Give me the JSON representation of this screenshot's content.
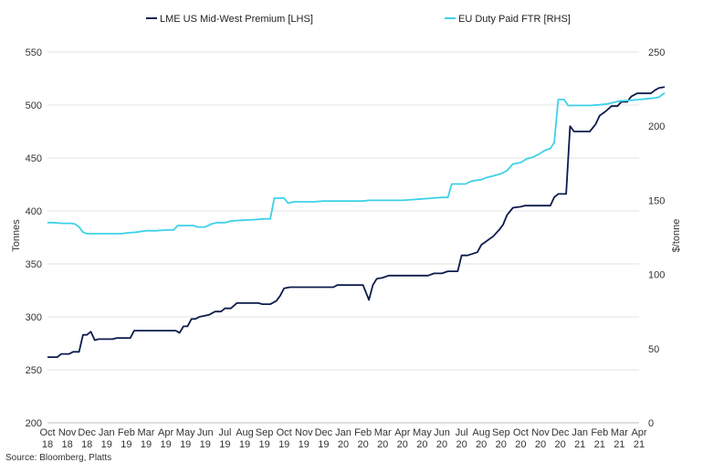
{
  "chart_data": {
    "type": "line",
    "title": "",
    "source": "Source: Bloomberg, Platts",
    "legend": [
      {
        "name": "LME US Mid-West Premium [LHS]",
        "color": "#0d1b4c"
      },
      {
        "name": "EU Duty Paid FTR [RHS]",
        "color": "#3ed1ea"
      }
    ],
    "y_left": {
      "label": "Tonnes",
      "min": 200,
      "max": 550,
      "ticks": [
        "200",
        "250",
        "300",
        "350",
        "400",
        "450",
        "500",
        "550"
      ]
    },
    "y_right": {
      "label": "$/tonne",
      "min": 0,
      "max": 250,
      "ticks": [
        "0",
        "50",
        "100",
        "150",
        "200",
        "250"
      ]
    },
    "x_ticks": [
      {
        "m": "Oct",
        "y": "18"
      },
      {
        "m": "Nov",
        "y": "18"
      },
      {
        "m": "Dec",
        "y": "18"
      },
      {
        "m": "Jan",
        "y": "19"
      },
      {
        "m": "Feb",
        "y": "19"
      },
      {
        "m": "Mar",
        "y": "19"
      },
      {
        "m": "Apr",
        "y": "19"
      },
      {
        "m": "May",
        "y": "19"
      },
      {
        "m": "Jun",
        "y": "19"
      },
      {
        "m": "Jul",
        "y": "19"
      },
      {
        "m": "Aug",
        "y": "19"
      },
      {
        "m": "Sep",
        "y": "19"
      },
      {
        "m": "Oct",
        "y": "19"
      },
      {
        "m": "Nov",
        "y": "19"
      },
      {
        "m": "Dec",
        "y": "19"
      },
      {
        "m": "Jan",
        "y": "20"
      },
      {
        "m": "Feb",
        "y": "20"
      },
      {
        "m": "Mar",
        "y": "20"
      },
      {
        "m": "Apr",
        "y": "20"
      },
      {
        "m": "May",
        "y": "20"
      },
      {
        "m": "Jun",
        "y": "20"
      },
      {
        "m": "Jul",
        "y": "20"
      },
      {
        "m": "Aug",
        "y": "20"
      },
      {
        "m": "Sep",
        "y": "20"
      },
      {
        "m": "Oct",
        "y": "20"
      },
      {
        "m": "Nov",
        "y": "20"
      },
      {
        "m": "Dec",
        "y": "20"
      },
      {
        "m": "Jan",
        "y": "21"
      },
      {
        "m": "Feb",
        "y": "21"
      },
      {
        "m": "Mar",
        "y": "21"
      },
      {
        "m": "Apr",
        "y": "21"
      }
    ],
    "series": [
      {
        "name": "LME US Mid-West Premium [LHS]",
        "axis": "left",
        "color": "#0d1b4c",
        "points": [
          [
            0,
            262
          ],
          [
            0.5,
            262
          ],
          [
            0.7,
            265
          ],
          [
            1.1,
            265
          ],
          [
            1.3,
            267
          ],
          [
            1.6,
            267
          ],
          [
            1.8,
            283
          ],
          [
            2.0,
            283
          ],
          [
            2.2,
            286
          ],
          [
            2.4,
            278
          ],
          [
            2.6,
            279
          ],
          [
            3.3,
            279
          ],
          [
            3.5,
            280
          ],
          [
            4.2,
            280
          ],
          [
            4.4,
            287
          ],
          [
            6.5,
            287
          ],
          [
            6.7,
            285
          ],
          [
            6.9,
            291
          ],
          [
            7.1,
            291
          ],
          [
            7.3,
            298
          ],
          [
            7.5,
            298
          ],
          [
            7.7,
            300
          ],
          [
            8.2,
            302
          ],
          [
            8.5,
            305
          ],
          [
            8.8,
            305
          ],
          [
            9.0,
            308
          ],
          [
            9.3,
            308
          ],
          [
            9.6,
            313
          ],
          [
            10.0,
            313
          ],
          [
            10.7,
            313
          ],
          [
            10.9,
            312
          ],
          [
            11.3,
            312
          ],
          [
            11.6,
            315
          ],
          [
            11.8,
            320
          ],
          [
            12.0,
            327
          ],
          [
            12.3,
            328
          ],
          [
            14.5,
            328
          ],
          [
            14.7,
            330
          ],
          [
            16.0,
            330
          ],
          [
            16.3,
            316
          ],
          [
            16.5,
            330
          ],
          [
            16.7,
            336
          ],
          [
            17.0,
            337
          ],
          [
            17.3,
            339
          ],
          [
            19.3,
            339
          ],
          [
            19.6,
            341
          ],
          [
            20.0,
            341
          ],
          [
            20.3,
            343
          ],
          [
            20.8,
            343
          ],
          [
            21.0,
            358
          ],
          [
            21.3,
            358
          ],
          [
            21.8,
            361
          ],
          [
            22.0,
            368
          ],
          [
            22.3,
            372
          ],
          [
            22.6,
            376
          ],
          [
            22.9,
            382
          ],
          [
            23.1,
            387
          ],
          [
            23.3,
            396
          ],
          [
            23.6,
            403
          ],
          [
            24.0,
            404
          ],
          [
            24.2,
            405
          ],
          [
            25.5,
            405
          ],
          [
            25.7,
            413
          ],
          [
            25.9,
            416
          ],
          [
            26.3,
            416
          ],
          [
            26.5,
            480
          ],
          [
            26.7,
            475
          ],
          [
            27.5,
            475
          ],
          [
            27.8,
            482
          ],
          [
            28.0,
            490
          ],
          [
            28.3,
            494
          ],
          [
            28.6,
            499
          ],
          [
            28.9,
            499
          ],
          [
            29.1,
            503
          ],
          [
            29.4,
            503
          ],
          [
            29.6,
            508
          ],
          [
            29.9,
            511
          ],
          [
            30.2,
            511
          ],
          [
            30.6,
            511
          ],
          [
            30.8,
            514
          ],
          [
            31.0,
            516
          ],
          [
            31.3,
            517
          ]
        ]
      },
      {
        "name": "EU Duty Paid FTR [RHS]",
        "axis": "right",
        "color": "#3ed1ea",
        "points": [
          [
            0,
            135
          ],
          [
            0.3,
            135
          ],
          [
            0.8,
            134.5
          ],
          [
            1.2,
            134.5
          ],
          [
            1.4,
            134
          ],
          [
            1.6,
            132
          ],
          [
            1.8,
            128.5
          ],
          [
            2.0,
            127.5
          ],
          [
            3.8,
            127.5
          ],
          [
            4.0,
            128
          ],
          [
            4.5,
            128.5
          ],
          [
            5.0,
            129.5
          ],
          [
            5.5,
            129.5
          ],
          [
            6.0,
            130
          ],
          [
            6.4,
            130
          ],
          [
            6.6,
            133
          ],
          [
            7.4,
            133
          ],
          [
            7.6,
            132
          ],
          [
            8.0,
            132
          ],
          [
            8.3,
            134
          ],
          [
            8.6,
            135
          ],
          [
            9.0,
            135
          ],
          [
            9.3,
            136
          ],
          [
            9.8,
            136.5
          ],
          [
            10.5,
            137
          ],
          [
            11.0,
            137.5
          ],
          [
            11.3,
            137.5
          ],
          [
            11.5,
            151.5
          ],
          [
            12.0,
            151.5
          ],
          [
            12.2,
            148
          ],
          [
            12.5,
            149
          ],
          [
            13.5,
            149
          ],
          [
            14.0,
            149.5
          ],
          [
            16.0,
            149.5
          ],
          [
            16.3,
            150
          ],
          [
            18.0,
            150
          ],
          [
            18.5,
            150.5
          ],
          [
            19.0,
            151
          ],
          [
            19.5,
            151.5
          ],
          [
            20.0,
            152
          ],
          [
            20.3,
            152
          ],
          [
            20.5,
            161
          ],
          [
            21.2,
            161
          ],
          [
            21.5,
            163
          ],
          [
            22.0,
            164
          ],
          [
            22.3,
            165.5
          ],
          [
            22.6,
            166.5
          ],
          [
            23.0,
            168
          ],
          [
            23.3,
            170
          ],
          [
            23.6,
            174.5
          ],
          [
            24.0,
            175.5
          ],
          [
            24.3,
            178
          ],
          [
            24.6,
            179
          ],
          [
            24.9,
            181
          ],
          [
            25.2,
            183.5
          ],
          [
            25.5,
            185
          ],
          [
            25.7,
            189
          ],
          [
            25.9,
            218
          ],
          [
            26.2,
            218
          ],
          [
            26.4,
            214
          ],
          [
            27.5,
            214
          ],
          [
            28.0,
            214.5
          ],
          [
            28.4,
            215
          ],
          [
            28.7,
            216
          ],
          [
            29.0,
            217
          ],
          [
            29.6,
            217.5
          ],
          [
            30.0,
            218
          ],
          [
            30.4,
            218.5
          ],
          [
            30.8,
            219
          ],
          [
            31.0,
            219.5
          ],
          [
            31.3,
            222.5
          ]
        ]
      }
    ]
  }
}
